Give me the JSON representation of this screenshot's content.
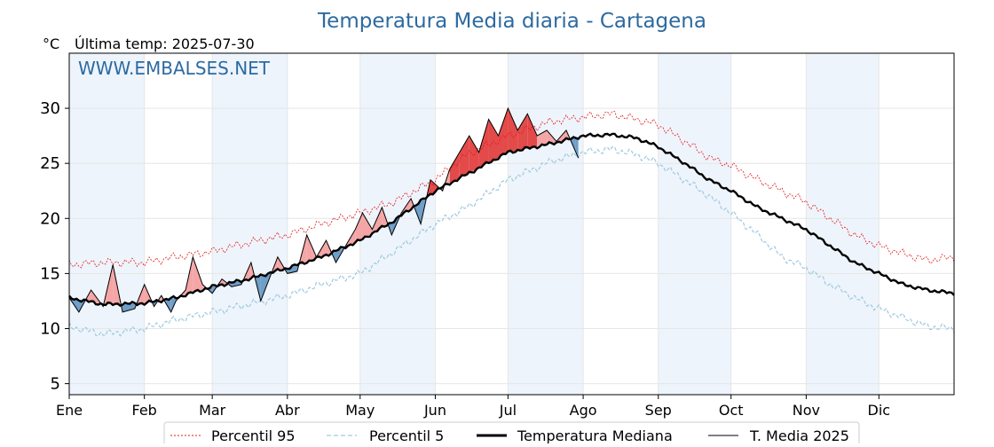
{
  "chart_data": {
    "type": "line",
    "title": "Temperatura Media diaria - Cartagena",
    "unit_label": "°C",
    "subtitle": "Última temp: 2025-07-30",
    "watermark": "WWW.EMBALSES.NET",
    "x_ticks": [
      "Ene",
      "Feb",
      "Mar",
      "Abr",
      "May",
      "Jun",
      "Jul",
      "Ago",
      "Sep",
      "Oct",
      "Nov",
      "Dic"
    ],
    "x_tick_days": [
      1,
      32,
      60,
      91,
      121,
      152,
      182,
      213,
      244,
      274,
      305,
      335
    ],
    "xlim": [
      1,
      366
    ],
    "ylim": [
      4,
      35
    ],
    "y_ticks": [
      5,
      10,
      15,
      20,
      25,
      30
    ],
    "grid": true,
    "shaded_months": [
      "Ene",
      "Mar",
      "May",
      "Jul",
      "Sep",
      "Nov"
    ],
    "legend_position": "bottom",
    "colors": {
      "p95": "#e31a1c",
      "p5": "#9ecae1",
      "median": "#000000",
      "current": "#000000",
      "above_fill": "#f4a6a6",
      "above_fill_strong": "#e34a4a",
      "below_fill": "#6f9ec8",
      "month_shade": "#eef4fb"
    },
    "series": [
      {
        "name": "Percentil 95",
        "key": "p95",
        "points": [
          [
            1,
            15.8
          ],
          [
            15,
            16.0
          ],
          [
            32,
            16.0
          ],
          [
            45,
            16.5
          ],
          [
            60,
            17.0
          ],
          [
            75,
            17.8
          ],
          [
            91,
            18.5
          ],
          [
            105,
            19.5
          ],
          [
            121,
            20.5
          ],
          [
            135,
            21.5
          ],
          [
            152,
            23.5
          ],
          [
            165,
            25.8
          ],
          [
            182,
            27.5
          ],
          [
            200,
            28.8
          ],
          [
            213,
            29.2
          ],
          [
            225,
            29.5
          ],
          [
            235,
            29.0
          ],
          [
            244,
            28.5
          ],
          [
            255,
            27.0
          ],
          [
            265,
            25.5
          ],
          [
            274,
            24.8
          ],
          [
            285,
            23.5
          ],
          [
            295,
            22.5
          ],
          [
            305,
            21.5
          ],
          [
            315,
            20.0
          ],
          [
            325,
            18.5
          ],
          [
            335,
            17.5
          ],
          [
            345,
            16.8
          ],
          [
            355,
            16.2
          ],
          [
            366,
            16.5
          ]
        ]
      },
      {
        "name": "Percentil 5",
        "key": "p5",
        "points": [
          [
            1,
            10.2
          ],
          [
            15,
            9.5
          ],
          [
            32,
            10.0
          ],
          [
            45,
            10.8
          ],
          [
            60,
            11.5
          ],
          [
            75,
            12.2
          ],
          [
            91,
            13.0
          ],
          [
            105,
            14.0
          ],
          [
            121,
            15.0
          ],
          [
            135,
            17.0
          ],
          [
            152,
            19.5
          ],
          [
            165,
            21.0
          ],
          [
            182,
            23.5
          ],
          [
            200,
            25.2
          ],
          [
            213,
            26.0
          ],
          [
            225,
            26.3
          ],
          [
            235,
            25.8
          ],
          [
            244,
            25.0
          ],
          [
            255,
            23.5
          ],
          [
            265,
            22.0
          ],
          [
            274,
            20.5
          ],
          [
            285,
            18.5
          ],
          [
            295,
            16.5
          ],
          [
            305,
            15.5
          ],
          [
            315,
            14.0
          ],
          [
            325,
            12.8
          ],
          [
            335,
            11.8
          ],
          [
            345,
            11.0
          ],
          [
            355,
            10.2
          ],
          [
            366,
            10.0
          ]
        ]
      },
      {
        "name": "Temperatura Mediana",
        "key": "median",
        "points": [
          [
            1,
            12.8
          ],
          [
            15,
            12.2
          ],
          [
            32,
            12.3
          ],
          [
            45,
            12.8
          ],
          [
            60,
            13.8
          ],
          [
            75,
            14.5
          ],
          [
            91,
            15.5
          ],
          [
            105,
            16.5
          ],
          [
            121,
            18.0
          ],
          [
            135,
            19.8
          ],
          [
            152,
            22.5
          ],
          [
            165,
            24.0
          ],
          [
            182,
            26.0
          ],
          [
            200,
            26.8
          ],
          [
            213,
            27.5
          ],
          [
            225,
            27.6
          ],
          [
            235,
            27.3
          ],
          [
            244,
            26.5
          ],
          [
            255,
            25.0
          ],
          [
            265,
            23.5
          ],
          [
            274,
            22.5
          ],
          [
            285,
            21.0
          ],
          [
            295,
            20.0
          ],
          [
            305,
            19.0
          ],
          [
            315,
            17.5
          ],
          [
            325,
            16.0
          ],
          [
            335,
            15.0
          ],
          [
            345,
            14.0
          ],
          [
            355,
            13.5
          ],
          [
            366,
            13.2
          ]
        ]
      },
      {
        "name": "T. Media 2025",
        "key": "current",
        "points": [
          [
            1,
            12.8
          ],
          [
            5,
            11.5
          ],
          [
            10,
            13.5
          ],
          [
            15,
            12.0
          ],
          [
            19,
            15.8
          ],
          [
            23,
            11.5
          ],
          [
            28,
            11.8
          ],
          [
            32,
            14.0
          ],
          [
            36,
            12.0
          ],
          [
            39,
            13.0
          ],
          [
            43,
            11.5
          ],
          [
            45,
            12.5
          ],
          [
            49,
            13.5
          ],
          [
            52,
            16.5
          ],
          [
            56,
            14.0
          ],
          [
            60,
            13.2
          ],
          [
            64,
            14.5
          ],
          [
            68,
            13.8
          ],
          [
            72,
            14.0
          ],
          [
            76,
            16.0
          ],
          [
            80,
            12.5
          ],
          [
            84,
            14.8
          ],
          [
            87,
            16.5
          ],
          [
            91,
            15.0
          ],
          [
            95,
            15.2
          ],
          [
            99,
            18.5
          ],
          [
            103,
            16.5
          ],
          [
            107,
            18.0
          ],
          [
            111,
            16.0
          ],
          [
            115,
            17.5
          ],
          [
            119,
            19.0
          ],
          [
            122,
            20.5
          ],
          [
            126,
            19.0
          ],
          [
            130,
            21.0
          ],
          [
            134,
            18.5
          ],
          [
            138,
            20.5
          ],
          [
            142,
            21.8
          ],
          [
            146,
            19.5
          ],
          [
            150,
            23.5
          ],
          [
            155,
            22.5
          ],
          [
            158,
            24.5
          ],
          [
            162,
            26.0
          ],
          [
            166,
            27.5
          ],
          [
            170,
            26.0
          ],
          [
            174,
            29.0
          ],
          [
            178,
            27.5
          ],
          [
            182,
            30.0
          ],
          [
            186,
            28.0
          ],
          [
            190,
            29.5
          ],
          [
            194,
            27.5
          ],
          [
            198,
            28.0
          ],
          [
            202,
            27.0
          ],
          [
            206,
            28.0
          ],
          [
            210,
            26.0
          ],
          [
            211,
            25.5
          ]
        ]
      }
    ]
  }
}
